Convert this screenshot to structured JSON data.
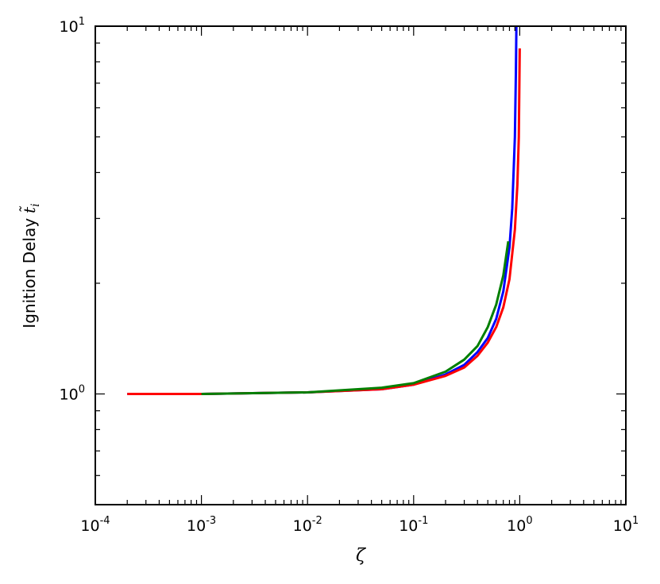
{
  "chart_data": {
    "type": "line",
    "title": "",
    "xlabel": "ζ",
    "ylabel": "Ignition Delay",
    "ylabel_symbol": "t̃",
    "ylabel_subscript": "i",
    "xscale": "log",
    "yscale": "log",
    "xlim": [
      0.0001,
      10
    ],
    "ylim": [
      0.5,
      10
    ],
    "grid": false,
    "x_ticks": [
      {
        "base": "10",
        "exp": "-4"
      },
      {
        "base": "10",
        "exp": "-3"
      },
      {
        "base": "10",
        "exp": "-2"
      },
      {
        "base": "10",
        "exp": "-1"
      },
      {
        "base": "10",
        "exp": "0"
      },
      {
        "base": "10",
        "exp": "1"
      }
    ],
    "y_ticks": [
      {
        "base": "10",
        "exp": "0"
      },
      {
        "base": "10",
        "exp": "1"
      }
    ],
    "series": [
      {
        "color": "#0000ff",
        "x": [
          0.0002,
          0.001,
          0.01,
          0.05,
          0.1,
          0.2,
          0.3,
          0.4,
          0.5,
          0.6,
          0.7,
          0.8,
          0.85,
          0.9,
          0.92,
          0.93
        ],
        "y": [
          1.0,
          1.0,
          1.01,
          1.03,
          1.06,
          1.13,
          1.2,
          1.3,
          1.42,
          1.6,
          1.9,
          2.5,
          3.2,
          5.0,
          7.5,
          10.0
        ]
      },
      {
        "color": "#ff0000",
        "x": [
          0.0002,
          0.001,
          0.01,
          0.05,
          0.1,
          0.2,
          0.3,
          0.4,
          0.5,
          0.6,
          0.7,
          0.8,
          0.9,
          0.95,
          0.98,
          1.0
        ],
        "y": [
          1.0,
          1.0,
          1.01,
          1.03,
          1.06,
          1.12,
          1.18,
          1.27,
          1.38,
          1.52,
          1.72,
          2.05,
          2.8,
          3.7,
          5.0,
          8.7
        ]
      },
      {
        "color": "#007f00",
        "x": [
          0.001,
          0.01,
          0.05,
          0.1,
          0.2,
          0.3,
          0.4,
          0.5,
          0.6,
          0.7,
          0.78
        ],
        "y": [
          1.0,
          1.01,
          1.04,
          1.07,
          1.15,
          1.24,
          1.35,
          1.52,
          1.75,
          2.1,
          2.6
        ]
      }
    ]
  }
}
